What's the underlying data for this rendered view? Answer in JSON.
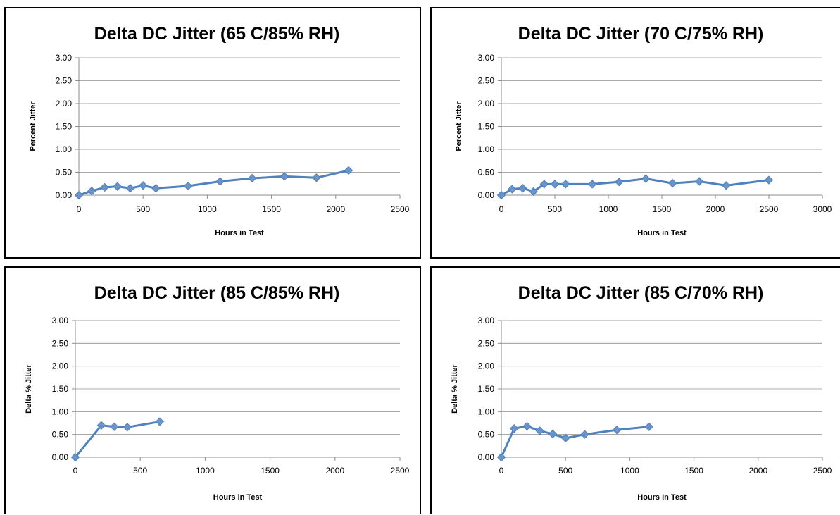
{
  "chart_data": [
    {
      "type": "line",
      "title": "Delta DC Jitter (65 C/85% RH)",
      "xlabel": "Hours in Test",
      "ylabel": "Percent Jitter",
      "xlim": [
        0,
        2500
      ],
      "ylim": [
        0,
        3
      ],
      "xticks": [
        "0",
        "500",
        "1000",
        "1500",
        "2000",
        "2500"
      ],
      "yticks": [
        "0.00",
        "0.50",
        "1.00",
        "1.50",
        "2.00",
        "2.50",
        "3.00"
      ],
      "grid": true,
      "series_color": "#4f81bd",
      "marker_color": "#6a94c9",
      "x": [
        0,
        100,
        200,
        300,
        400,
        500,
        600,
        850,
        1100,
        1350,
        1600,
        1850,
        2100
      ],
      "y": [
        0.0,
        0.09,
        0.17,
        0.19,
        0.15,
        0.21,
        0.15,
        0.2,
        0.3,
        0.37,
        0.41,
        0.38,
        0.54
      ]
    },
    {
      "type": "line",
      "title": "Delta DC Jitter (70 C/75% RH)",
      "xlabel": "Hours in Test",
      "ylabel": "Percent Jitter",
      "xlim": [
        0,
        3000
      ],
      "ylim": [
        0,
        3
      ],
      "xticks": [
        "0",
        "500",
        "1000",
        "1500",
        "2000",
        "2500",
        "3000"
      ],
      "yticks": [
        "0.00",
        "0.50",
        "1.00",
        "1.50",
        "2.00",
        "2.50",
        "3.00"
      ],
      "grid": true,
      "series_color": "#4f81bd",
      "marker_color": "#6a94c9",
      "x": [
        0,
        100,
        200,
        300,
        400,
        500,
        600,
        850,
        1100,
        1350,
        1600,
        1850,
        2100,
        2500
      ],
      "y": [
        0.0,
        0.13,
        0.15,
        0.08,
        0.24,
        0.24,
        0.24,
        0.24,
        0.29,
        0.36,
        0.26,
        0.3,
        0.21,
        0.33
      ]
    },
    {
      "type": "line",
      "title": "Delta DC Jitter (85 C/85% RH)",
      "xlabel": "Hours in Test",
      "ylabel": "Delta % Jitter",
      "xlim": [
        0,
        2500
      ],
      "ylim": [
        0,
        3
      ],
      "xticks": [
        "0",
        "500",
        "1000",
        "1500",
        "2000",
        "2500"
      ],
      "yticks": [
        "0.00",
        "0.50",
        "1.00",
        "1.50",
        "2.00",
        "2.50",
        "3.00"
      ],
      "grid": true,
      "series_color": "#4f81bd",
      "marker_color": "#6a94c9",
      "x": [
        0,
        200,
        300,
        400,
        650
      ],
      "y": [
        0.0,
        0.7,
        0.67,
        0.66,
        0.78
      ]
    },
    {
      "type": "line",
      "title": "Delta DC Jitter (85 C/70% RH)",
      "xlabel": "Hours In Test",
      "ylabel": "Delta % Jitter",
      "xlim": [
        0,
        2500
      ],
      "ylim": [
        0,
        3
      ],
      "xticks": [
        "0",
        "500",
        "1000",
        "1500",
        "2000",
        "2500"
      ],
      "yticks": [
        "0.00",
        "0.50",
        "1.00",
        "1.50",
        "2.00",
        "2.50",
        "3.00"
      ],
      "grid": true,
      "series_color": "#4f81bd",
      "marker_color": "#6a94c9",
      "x": [
        0,
        100,
        200,
        300,
        400,
        500,
        650,
        900,
        1150
      ],
      "y": [
        0.0,
        0.63,
        0.68,
        0.58,
        0.51,
        0.42,
        0.5,
        0.6,
        0.67
      ]
    }
  ]
}
